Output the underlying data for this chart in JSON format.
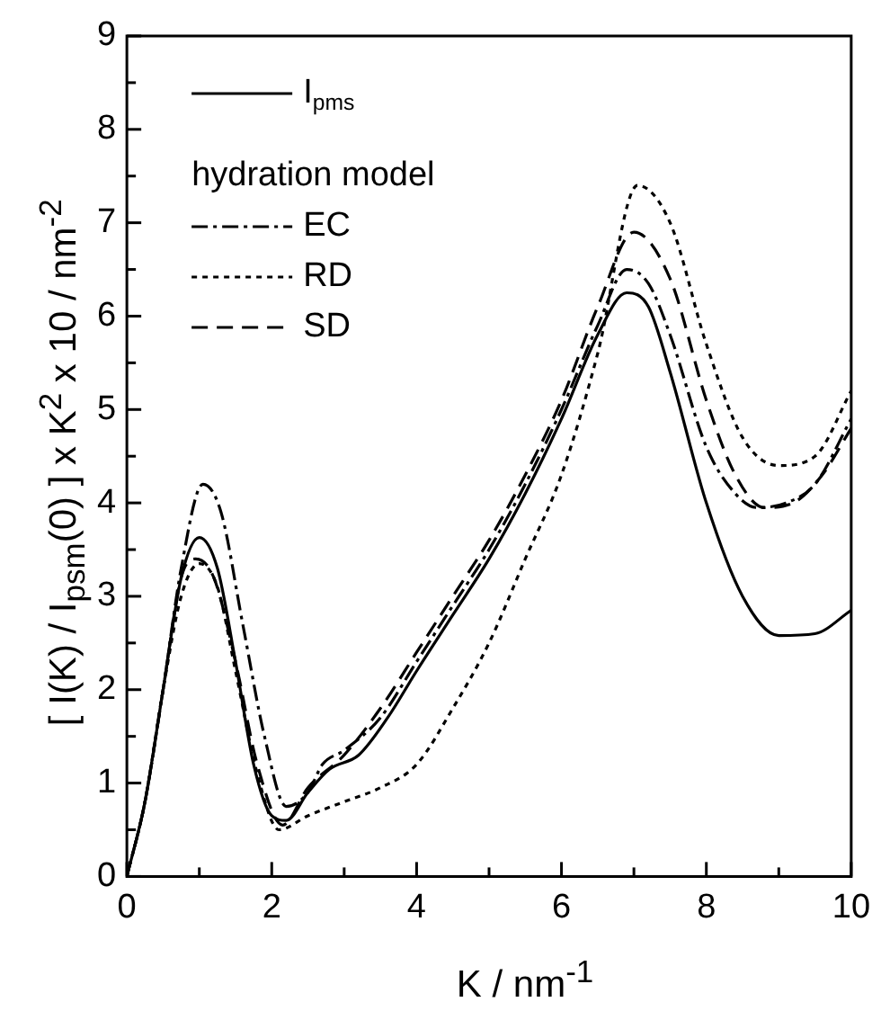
{
  "chart_data": {
    "type": "line",
    "xlabel": "K / nm$^{-1}$",
    "ylabel": "[ I(K) / I$_{psm}$(0) ] x K$^{2}$ x 10 / nm$^{-2}$",
    "legend_title": "hydration model",
    "legend": "top left",
    "grid": false,
    "marker": "none",
    "xlim": [
      0,
      10
    ],
    "ylim": [
      0,
      9
    ],
    "xticks": [
      0,
      {
        "value": 1,
        "label": null
      },
      2,
      {
        "value": 3,
        "label": null
      },
      4,
      {
        "value": 5,
        "label": null
      },
      6,
      {
        "value": 7,
        "label": null
      },
      8,
      {
        "value": 9,
        "label": null
      },
      10
    ],
    "yticks": [
      0,
      {
        "value": 0.5,
        "label": null
      },
      1,
      {
        "value": 1.5,
        "label": null
      },
      2,
      {
        "value": 2.5,
        "label": null
      },
      3,
      {
        "value": 3.5,
        "label": null
      },
      4,
      {
        "value": 4.5,
        "label": null
      },
      5,
      {
        "value": 5.5,
        "label": null
      },
      6,
      {
        "value": 6.5,
        "label": null
      },
      7,
      {
        "value": 7.5,
        "label": null
      },
      8,
      {
        "value": 8.5,
        "label": null
      },
      9
    ],
    "series": [
      {
        "name": "I$_{pms}$",
        "color": "#000000",
        "line_style": "solid",
        "x": [
          0,
          0.25,
          0.5,
          0.75,
          1.0,
          1.25,
          1.5,
          1.75,
          2.0,
          2.2,
          2.5,
          2.8,
          3.2,
          3.6,
          4,
          4.5,
          5,
          5.5,
          6,
          6.5,
          6.9,
          7.2,
          7.5,
          8,
          8.5,
          9,
          9.5,
          10
        ],
        "values": [
          0,
          0.8,
          2.0,
          3.2,
          3.63,
          3.3,
          2.3,
          1.2,
          0.65,
          0.6,
          0.9,
          1.15,
          1.3,
          1.7,
          2.2,
          2.8,
          3.4,
          4.1,
          4.9,
          5.8,
          6.25,
          6.1,
          5.4,
          4.0,
          3.0,
          2.58,
          2.6,
          2.85
        ]
      },
      {
        "name": "EC",
        "color": "#000000",
        "line_style": "dashdot",
        "x": [
          0,
          0.25,
          0.5,
          0.75,
          1.05,
          1.3,
          1.6,
          1.9,
          2.2,
          2.5,
          2.7,
          3,
          3.5,
          4,
          4.5,
          5,
          5.5,
          6,
          6.5,
          6.9,
          7.2,
          7.5,
          8,
          8.4,
          8.7,
          9.1,
          9.5,
          10
        ],
        "values": [
          0,
          0.8,
          2.0,
          3.3,
          4.2,
          3.9,
          2.7,
          1.5,
          0.75,
          0.9,
          1.2,
          1.35,
          1.7,
          2.3,
          2.9,
          3.5,
          4.2,
          5.0,
          5.9,
          6.5,
          6.35,
          5.8,
          4.6,
          4.1,
          3.95,
          4.0,
          4.2,
          4.9
        ]
      },
      {
        "name": "RD",
        "color": "#000000",
        "line_style": "dotted",
        "x": [
          0,
          0.25,
          0.5,
          0.75,
          1.0,
          1.25,
          1.5,
          1.8,
          2.1,
          2.5,
          3,
          3.5,
          4,
          4.5,
          5,
          5.5,
          6,
          6.5,
          7.05,
          7.5,
          8,
          8.5,
          9,
          9.5,
          10
        ],
        "values": [
          0,
          0.8,
          2.0,
          3.0,
          3.35,
          3.1,
          2.2,
          1.1,
          0.5,
          0.65,
          0.8,
          0.95,
          1.2,
          1.8,
          2.5,
          3.4,
          4.3,
          5.6,
          7.4,
          7.0,
          5.7,
          4.7,
          4.4,
          4.5,
          5.2
        ]
      },
      {
        "name": "SD",
        "color": "#000000",
        "line_style": "dashed",
        "x": [
          0,
          0.25,
          0.5,
          0.75,
          0.95,
          1.2,
          1.5,
          1.8,
          2.15,
          2.5,
          3,
          3.5,
          4,
          4.5,
          5,
          5.5,
          6,
          6.5,
          7.0,
          7.5,
          8,
          8.4,
          8.8,
          9.2,
          9.6,
          10
        ],
        "values": [
          0,
          0.8,
          2.0,
          3.2,
          3.4,
          3.2,
          2.3,
          1.2,
          0.55,
          0.95,
          1.3,
          1.8,
          2.4,
          3.0,
          3.6,
          4.3,
          5.1,
          6.1,
          6.9,
          6.4,
          5.1,
          4.3,
          3.95,
          4.0,
          4.3,
          4.8
        ]
      }
    ]
  }
}
